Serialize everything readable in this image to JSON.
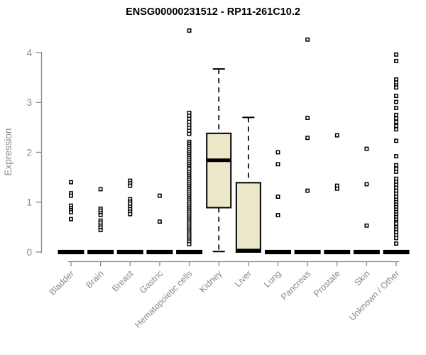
{
  "chart_data": {
    "type": "boxplot",
    "title": "ENSG00000231512 - RP11-261C10.2",
    "ylabel": "Expression",
    "xlabel": "",
    "ylim": [
      0,
      4
    ],
    "yticks": [
      0,
      1,
      2,
      3,
      4
    ],
    "grid": false,
    "legend": "none",
    "box_fill_color": "#EDE7C9",
    "box_stroke_color": "#000000",
    "axis_color": "#8A8A8A",
    "title_color": "#000000",
    "background_color": "#FFFFFF",
    "categories": [
      "Bladder",
      "Brain",
      "Breast",
      "Gastric",
      "Hematopoietic cells",
      "Kidney",
      "Liver",
      "Lung",
      "Pancreas",
      "Prostate",
      "Skin",
      "Unknown / Other"
    ],
    "series": [
      {
        "name": "Bladder",
        "q1": 0,
        "median": 0,
        "q3": 0,
        "whisker_low": 0,
        "whisker_high": 0,
        "outliers": [
          1.4,
          1.18,
          1.13,
          0.93,
          0.88,
          0.84,
          0.8,
          0.66
        ]
      },
      {
        "name": "Brain",
        "q1": 0,
        "median": 0,
        "q3": 0,
        "whisker_low": 0,
        "whisker_high": 0,
        "outliers": [
          1.26,
          0.87,
          0.83,
          0.78,
          0.74,
          0.63,
          0.59,
          0.53,
          0.49,
          0.44
        ]
      },
      {
        "name": "Breast",
        "q1": 0,
        "median": 0,
        "q3": 0,
        "whisker_low": 0,
        "whisker_high": 0,
        "outliers": [
          1.43,
          1.38,
          1.33,
          1.06,
          1.01,
          0.97,
          0.91,
          0.86,
          0.81,
          0.76
        ]
      },
      {
        "name": "Gastric",
        "q1": 0,
        "median": 0,
        "q3": 0,
        "whisker_low": 0,
        "whisker_high": 0,
        "outliers": [
          1.13,
          0.61
        ]
      },
      {
        "name": "Hematopoietic cells",
        "q1": 0,
        "median": 0,
        "q3": 0,
        "whisker_low": 0,
        "whisker_high": 0,
        "outliers": [
          4.44,
          2.79,
          2.73,
          2.67,
          2.61,
          2.55,
          2.49,
          2.43,
          2.37,
          2.21,
          2.17,
          2.13,
          2.09,
          2.05,
          2.01,
          1.97,
          1.93,
          1.89,
          1.85,
          1.81,
          1.77,
          1.73,
          1.69,
          1.66,
          1.61,
          1.57,
          1.53,
          1.49,
          1.45,
          1.41,
          1.37,
          1.33,
          1.29,
          1.25,
          1.21,
          1.17,
          1.13,
          1.09,
          1.05,
          1.01,
          0.97,
          0.93,
          0.89,
          0.85,
          0.81,
          0.77,
          0.73,
          0.69,
          0.65,
          0.61,
          0.57,
          0.53,
          0.49,
          0.45,
          0.41,
          0.37,
          0.33,
          0.29,
          0.25,
          0.21,
          0.16
        ]
      },
      {
        "name": "Kidney",
        "q1": 0.89,
        "median": 1.84,
        "q3": 2.38,
        "whisker_low": 0.01,
        "whisker_high": 3.67,
        "outliers": []
      },
      {
        "name": "Liver",
        "q1": 0,
        "median": 0.03,
        "q3": 1.39,
        "whisker_low": 0,
        "whisker_high": 2.7,
        "outliers": []
      },
      {
        "name": "Lung",
        "q1": 0,
        "median": 0,
        "q3": 0,
        "whisker_low": 0,
        "whisker_high": 0,
        "outliers": [
          2.0,
          1.76,
          1.11,
          0.74
        ]
      },
      {
        "name": "Pancreas",
        "q1": 0,
        "median": 0,
        "q3": 0,
        "whisker_low": 0,
        "whisker_high": 0,
        "outliers": [
          4.26,
          2.69,
          2.29,
          1.23
        ]
      },
      {
        "name": "Prostate",
        "q1": 0,
        "median": 0,
        "q3": 0,
        "whisker_low": 0,
        "whisker_high": 0,
        "outliers": [
          2.34,
          1.33,
          1.27
        ]
      },
      {
        "name": "Skin",
        "q1": 0,
        "median": 0,
        "q3": 0,
        "whisker_low": 0,
        "whisker_high": 0,
        "outliers": [
          2.07,
          1.36,
          0.53
        ]
      },
      {
        "name": "Unknown / Other",
        "q1": 0,
        "median": 0,
        "q3": 0,
        "whisker_low": 0,
        "whisker_high": 0,
        "outliers": [
          3.96,
          3.83,
          3.46,
          3.4,
          3.34,
          3.3,
          3.13,
          3.01,
          2.89,
          2.75,
          2.68,
          2.61,
          2.53,
          2.46,
          2.23,
          1.92,
          1.74,
          1.67,
          1.61,
          1.47,
          1.41,
          1.35,
          1.29,
          1.23,
          1.17,
          1.11,
          1.05,
          1.0,
          0.95,
          0.9,
          0.85,
          0.8,
          0.75,
          0.7,
          0.65,
          0.6,
          0.57,
          0.5,
          0.45,
          0.4,
          0.34,
          0.28,
          0.17
        ]
      }
    ]
  }
}
